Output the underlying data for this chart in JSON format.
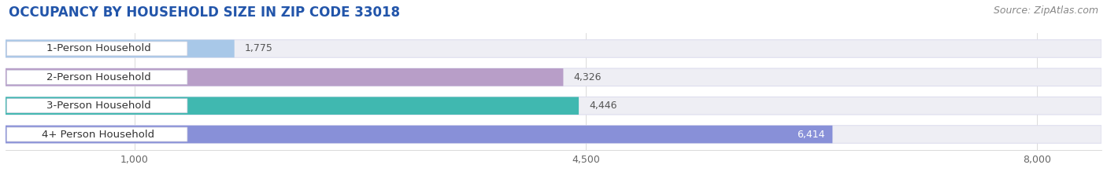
{
  "title": "OCCUPANCY BY HOUSEHOLD SIZE IN ZIP CODE 33018",
  "source": "Source: ZipAtlas.com",
  "categories": [
    "1-Person Household",
    "2-Person Household",
    "3-Person Household",
    "4+ Person Household"
  ],
  "values": [
    1775,
    4326,
    4446,
    6414
  ],
  "value_labels": [
    "1,775",
    "4,326",
    "4,446",
    "6,414"
  ],
  "bar_colors": [
    "#a8c8e8",
    "#b89ec8",
    "#40b8b0",
    "#8890d8"
  ],
  "bar_bg_color": "#eeeef4",
  "xlim_min": 0,
  "xlim_max": 8500,
  "xticks": [
    1000,
    4500,
    8000
  ],
  "xtick_labels": [
    "1,000",
    "4,500",
    "8,000"
  ],
  "background_color": "#ffffff",
  "bar_height": 0.62,
  "bar_gap": 0.38,
  "title_fontsize": 12,
  "source_fontsize": 9,
  "label_fontsize": 9,
  "category_fontsize": 9.5,
  "tick_fontsize": 9,
  "title_color": "#2255aa",
  "source_color": "#888888",
  "category_color": "#333333",
  "value_label_outside_color": "#555555",
  "value_label_inside_color": "#ffffff",
  "grid_color": "#cccccc",
  "pill_bg_color": "#ffffff",
  "pill_border_color": "#dddddd"
}
